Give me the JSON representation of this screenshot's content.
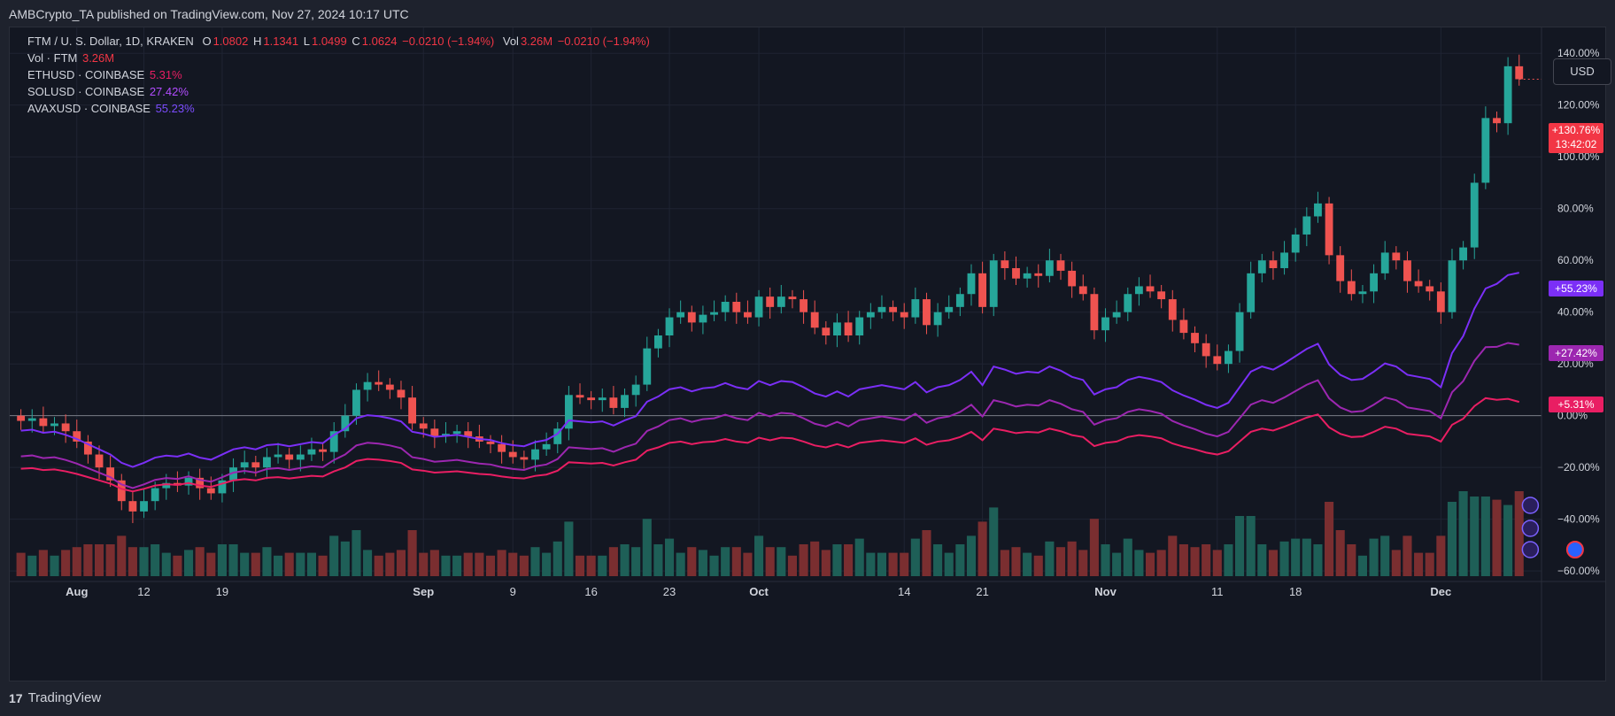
{
  "header": {
    "published": "AMBCrypto_TA published on TradingView.com, Nov 27, 2024 10:17 UTC"
  },
  "legend": {
    "symbol": "FTM / U. S. Dollar, 1D, KRAKEN",
    "o_label": "O",
    "o": "1.0802",
    "h_label": "H",
    "h": "1.1341",
    "l_label": "L",
    "l": "1.0499",
    "c_label": "C",
    "c": "1.0624",
    "chg": "−0.0210 (−1.94%)",
    "vol_label": "Vol",
    "vol": "3.26M",
    "vol_chg": "−0.0210 (−1.94%)",
    "lines": [
      {
        "label": "Vol · FTM",
        "value": "3.26M",
        "color": "#f23645"
      },
      {
        "label": "ETHUSD · COINBASE",
        "value": "5.31%",
        "color": "#e91e63"
      },
      {
        "label": "SOLUSD · COINBASE",
        "value": "27.42%",
        "color": "#9c27b0"
      },
      {
        "label": "AVAXUSD · COINBASE",
        "value": "55.23%",
        "color": "#7b2ff7"
      }
    ]
  },
  "currency_button": "USD",
  "price_tags": {
    "ftm": "+130.76%",
    "countdown": "13:42:02",
    "avax": "+55.23%",
    "sol": "+27.42%",
    "eth": "+5.31%"
  },
  "footer": {
    "brand": "TradingView",
    "logo": "17"
  },
  "colors": {
    "up": "#26a69a",
    "down": "#ef5350",
    "vol_up": "#1e5f57",
    "vol_down": "#7a2e30",
    "eth": "#e91e63",
    "sol": "#9c27b0",
    "avax": "#7b2ff7"
  },
  "chart_data": {
    "type": "line",
    "title": "FTM / U. S. Dollar, 1D, KRAKEN",
    "y_axis": {
      "unit": "%",
      "ylim": [
        -62,
        150
      ],
      "ticks": [
        140,
        120,
        100,
        80,
        60,
        40,
        20,
        0,
        -20,
        -40,
        -60
      ]
    },
    "y_tick_labels": [
      "140.00%",
      "120.00%",
      "100.00%",
      "80.00%",
      "60.00%",
      "40.00%",
      "20.00%",
      "0.00%",
      "−20.00%",
      "−40.00%",
      "−60.00%"
    ],
    "x_tick_labels": [
      {
        "label": "Aug",
        "day": 6,
        "bold": true
      },
      {
        "label": "12",
        "day": 12
      },
      {
        "label": "19",
        "day": 19
      },
      {
        "label": "Sep",
        "day": 37,
        "bold": true
      },
      {
        "label": "9",
        "day": 45
      },
      {
        "label": "16",
        "day": 52
      },
      {
        "label": "23",
        "day": 59
      },
      {
        "label": "Oct",
        "day": 67,
        "bold": true
      },
      {
        "label": "14",
        "day": 80
      },
      {
        "label": "21",
        "day": 87
      },
      {
        "label": "Nov",
        "day": 98,
        "bold": true
      },
      {
        "label": "11",
        "day": 108
      },
      {
        "label": "18",
        "day": 115
      },
      {
        "label": "Dec",
        "day": 128,
        "bold": true
      }
    ],
    "x_range": [
      0,
      137
    ],
    "ftm_candles_close_pct": [
      -2,
      -1,
      -4,
      -3,
      -6,
      -10,
      -15,
      -20,
      -25,
      -33,
      -37,
      -33,
      -28,
      -26,
      -27,
      -24,
      -28,
      -30,
      -25,
      -20,
      -18,
      -20,
      -16,
      -15,
      -17,
      -15,
      -13,
      -14,
      -6,
      0,
      10,
      13,
      12,
      10,
      7,
      -3,
      -5,
      -8,
      -7,
      -6,
      -8,
      -10,
      -11,
      -14,
      -16,
      -17,
      -13,
      -11,
      -5,
      8,
      7,
      6,
      7,
      3,
      8,
      12,
      26,
      31,
      38,
      40,
      36,
      39,
      40,
      44,
      40,
      38,
      46,
      42,
      46,
      45,
      40,
      34,
      31,
      36,
      31,
      38,
      40,
      42,
      40,
      38,
      45,
      35,
      40,
      42,
      47,
      55,
      42,
      60,
      57,
      53,
      55,
      54,
      60,
      56,
      50,
      47,
      33,
      38,
      40,
      47,
      50,
      48,
      45,
      37,
      32,
      28,
      23,
      20,
      25,
      40,
      55,
      60,
      57,
      63,
      70,
      77,
      82,
      62,
      52,
      47,
      48,
      55,
      63,
      60,
      52,
      50,
      48,
      40,
      60,
      65,
      90,
      115,
      113,
      135,
      130
    ],
    "series": [
      {
        "name": "AVAXUSD · COINBASE",
        "last": 55.23
      },
      {
        "name": "SOLUSD · COINBASE",
        "last": 27.42
      },
      {
        "name": "ETHUSD · COINBASE",
        "last": 5.31
      }
    ]
  }
}
